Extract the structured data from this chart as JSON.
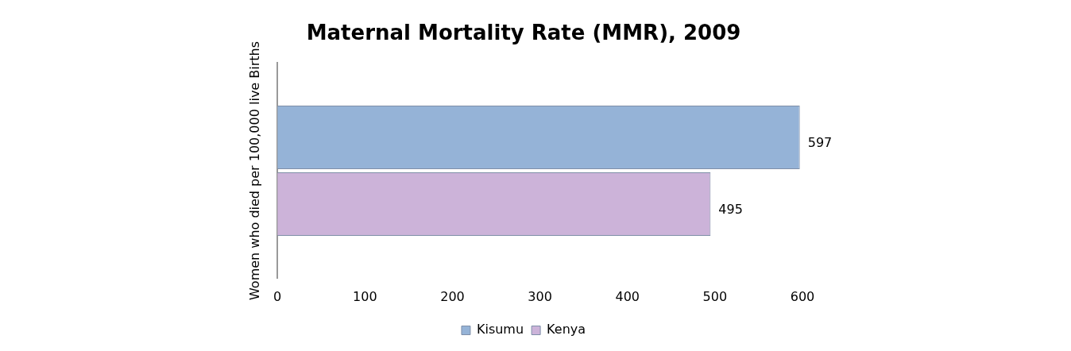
{
  "chart_data": {
    "type": "bar",
    "orientation": "horizontal",
    "title": "Maternal Mortality Rate (MMR), 2009",
    "ylabel": "Women who died per 100,000 live Births",
    "categories": [
      null
    ],
    "series": [
      {
        "name": "Kisumu",
        "color": "#95b3d7",
        "values": [
          597
        ]
      },
      {
        "name": "Kenya",
        "color": "#ccb3d9",
        "values": [
          495
        ]
      }
    ],
    "xlim": [
      0,
      600
    ],
    "xticks": [
      0,
      100,
      200,
      300,
      400,
      500,
      600
    ],
    "grid": false,
    "legend": "bottom",
    "data_labels": true
  }
}
